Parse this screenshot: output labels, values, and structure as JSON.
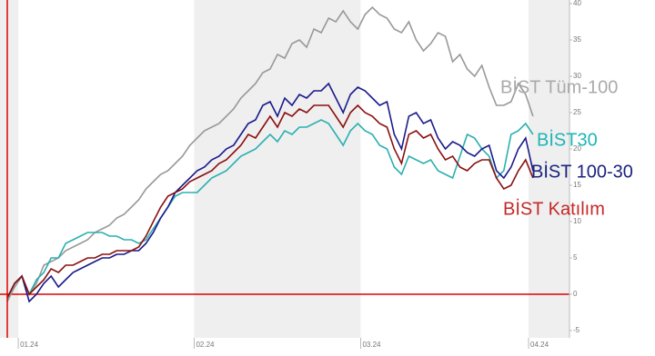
{
  "chart_data": {
    "type": "line",
    "x": [
      0,
      1,
      2,
      3,
      4,
      5,
      6,
      7,
      8,
      9,
      10,
      11,
      12,
      13,
      14,
      15,
      16,
      17,
      18,
      19,
      20,
      21,
      22,
      23,
      24,
      25,
      26,
      27,
      28,
      29,
      30,
      31,
      32,
      33,
      34,
      35,
      36,
      37,
      38,
      39,
      40,
      41,
      42,
      43,
      44,
      45,
      46,
      47,
      48,
      49,
      50,
      51,
      52,
      53,
      54,
      55,
      56,
      57,
      58,
      59,
      60,
      61,
      62,
      63,
      64,
      65,
      66,
      67,
      68,
      69,
      70,
      71,
      72
    ],
    "xlim": [
      -1,
      77
    ],
    "xticks": [
      {
        "value": 1.5,
        "label": "01.24"
      },
      {
        "value": 25.6,
        "label": "02.24"
      },
      {
        "value": 48.4,
        "label": "03.24"
      },
      {
        "value": 71.4,
        "label": "04.24"
      }
    ],
    "ylim": [
      -6,
      40.5
    ],
    "yticks": [
      -5,
      0,
      5,
      10,
      15,
      20,
      25,
      30,
      35,
      40
    ],
    "series": [
      {
        "name": "BİST Tüm-100",
        "color": "#999999",
        "label_color": "#aaaaaa",
        "values": [
          -1,
          1,
          2.5,
          0,
          1.5,
          4,
          4.5,
          5,
          6,
          6.5,
          7,
          7.5,
          8.5,
          9,
          9.5,
          10.5,
          11,
          12,
          13,
          14.5,
          15.5,
          16.5,
          17,
          18,
          19,
          20.5,
          21.5,
          22.5,
          23,
          23.5,
          24.5,
          25.5,
          27,
          28,
          29,
          30.5,
          31,
          33,
          32.5,
          34.5,
          35,
          34,
          36.5,
          36,
          38,
          37.5,
          39,
          37.5,
          36.5,
          38.5,
          39.5,
          38.5,
          38,
          36.5,
          36,
          37.5,
          35,
          33.5,
          34.5,
          36,
          35.5,
          32,
          33,
          31,
          30,
          31.5,
          28.5,
          26,
          26,
          26.5,
          29,
          27.5,
          24.5
        ]
      },
      {
        "name": "BİST30",
        "color": "#2ab0b0",
        "label_color": "#1fb5b5",
        "values": [
          -0.5,
          1.5,
          2.5,
          0,
          2,
          3,
          5,
          5,
          7,
          7.5,
          8,
          8.5,
          8.5,
          8.5,
          8,
          8,
          7.5,
          7.5,
          7,
          7.5,
          9,
          10.5,
          12,
          13.5,
          14,
          14,
          14,
          15,
          16,
          16.5,
          17,
          18,
          19,
          19.5,
          20,
          21,
          22,
          21,
          22.5,
          22,
          23,
          23,
          23.5,
          24,
          23.5,
          22,
          20.5,
          22.5,
          23.5,
          22.5,
          22,
          20.5,
          20,
          17.5,
          16.5,
          19,
          18.5,
          18,
          18.5,
          17,
          16.5,
          16,
          19,
          22,
          21.5,
          20,
          19,
          16,
          17,
          22,
          22.5,
          23.5,
          22
        ]
      },
      {
        "name": "BİST 100-30",
        "color": "#1a1a8c",
        "label_color": "#1a237e",
        "values": [
          -0.5,
          1.5,
          2.5,
          -1,
          0,
          1.5,
          2.5,
          1,
          2,
          3,
          3.5,
          4,
          4.5,
          5,
          5,
          5.5,
          5.5,
          6,
          6,
          7,
          8.5,
          10.5,
          12,
          14,
          15,
          16,
          17,
          17.5,
          18.5,
          19,
          20,
          20.5,
          22,
          23.5,
          24,
          26,
          26.5,
          24.5,
          27,
          26,
          27.5,
          27,
          28,
          28,
          29,
          27,
          25,
          27.5,
          28.5,
          28,
          27,
          26,
          26.5,
          22,
          20,
          24.5,
          25,
          23.5,
          24,
          21.5,
          20,
          21,
          20.5,
          19.5,
          19,
          20,
          20.5,
          17,
          16,
          17.5,
          20,
          21.5,
          17
        ]
      },
      {
        "name": "BİST Katılım",
        "color": "#8b1010",
        "label_color": "#c62828",
        "values": [
          -0.5,
          1.5,
          2.5,
          0,
          1,
          2,
          3.5,
          3,
          4,
          4,
          4.5,
          5,
          5,
          5.5,
          5.5,
          6,
          6,
          6,
          6.5,
          8,
          10,
          12,
          13.5,
          14,
          14.5,
          15.5,
          16,
          16.5,
          17,
          18,
          18.5,
          19.5,
          20.5,
          22,
          21.5,
          23,
          24.5,
          23,
          25,
          24.5,
          25.5,
          25,
          26,
          26,
          26,
          24.5,
          23,
          25,
          26,
          25,
          24.5,
          23.5,
          23,
          20,
          18,
          22,
          22.5,
          21.5,
          22,
          20,
          18.5,
          19,
          17.5,
          17,
          18,
          18.5,
          18.5,
          16,
          14.5,
          15,
          17,
          18.5,
          16
        ]
      }
    ]
  }
}
